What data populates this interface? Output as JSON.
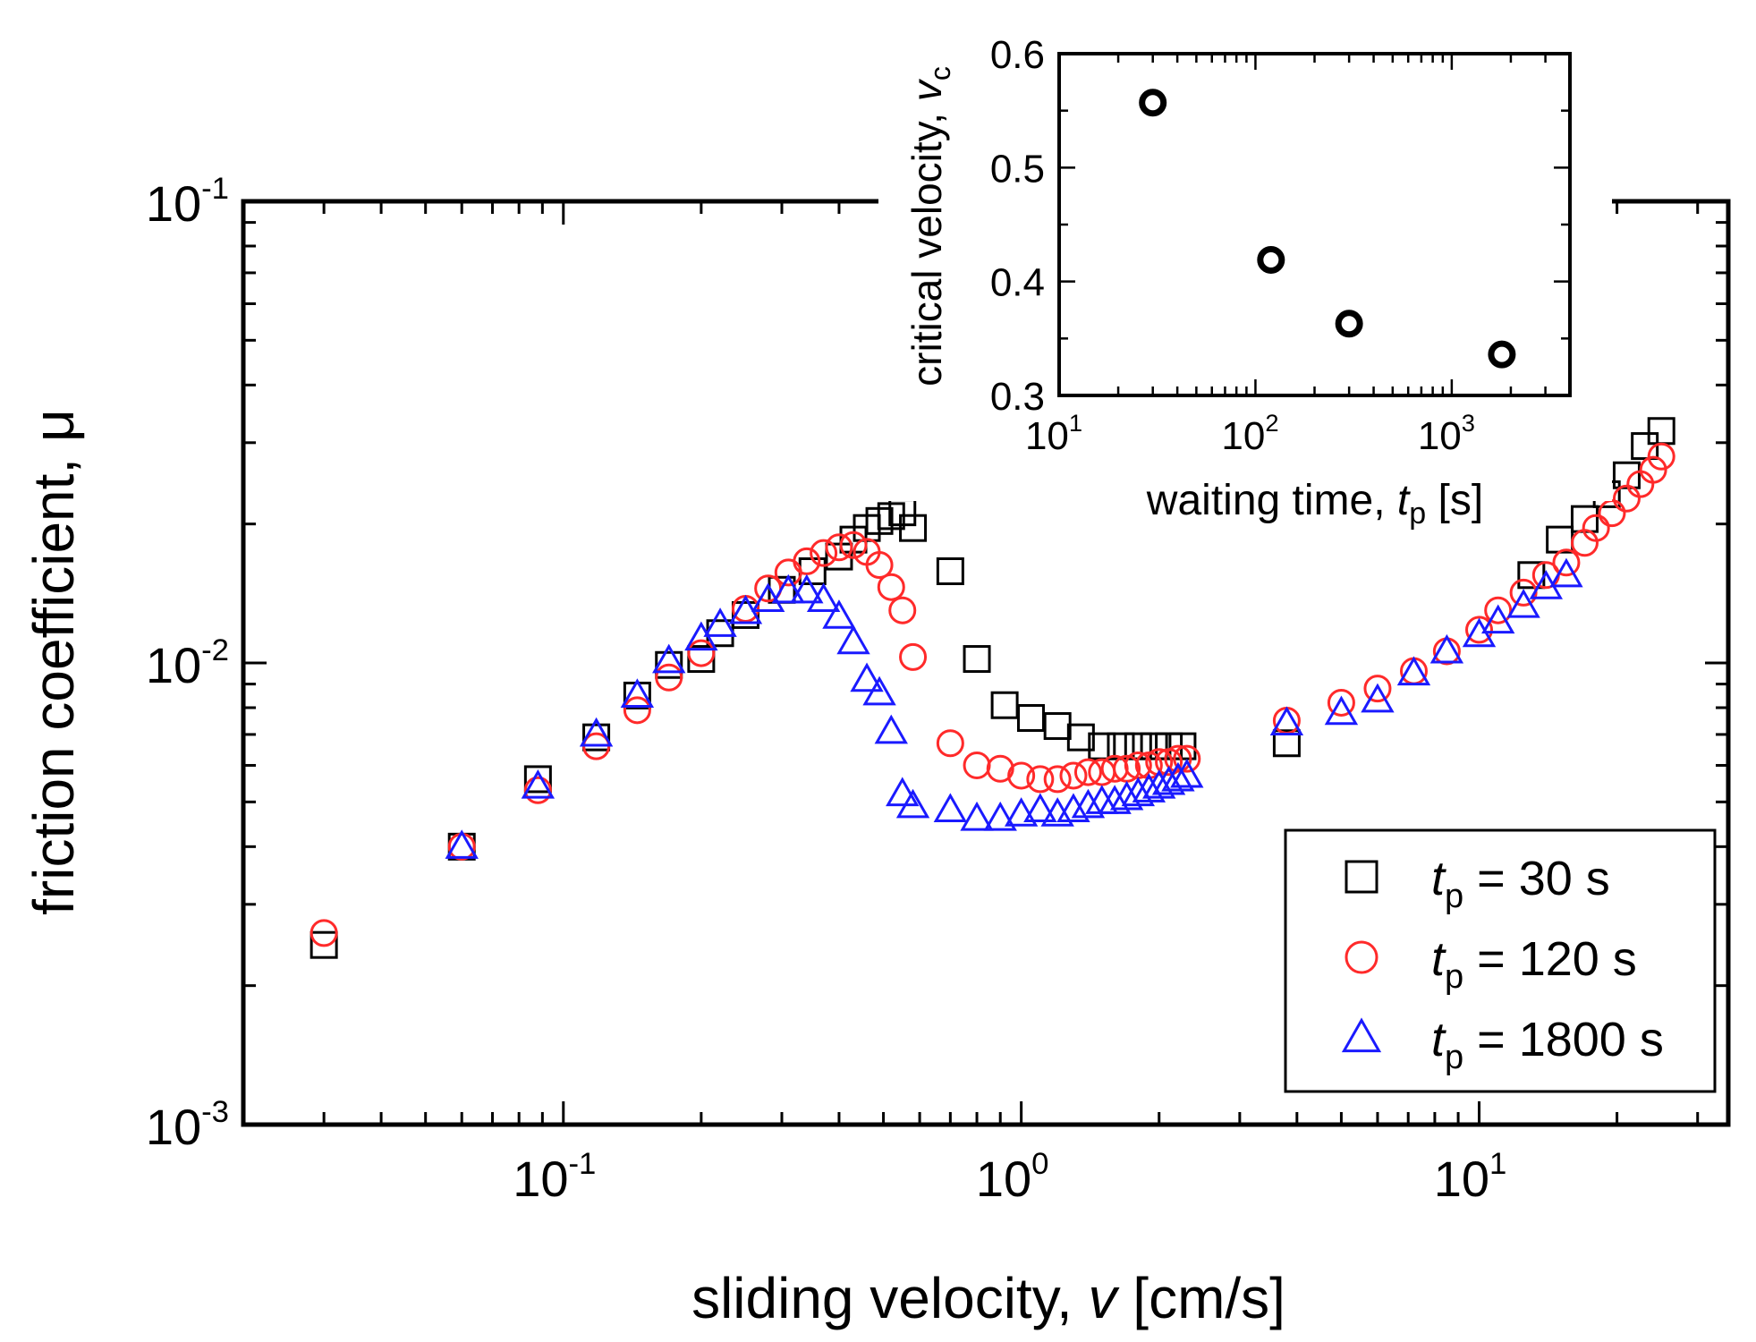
{
  "chart_data": [
    {
      "id": "main",
      "type": "scatter",
      "xscale": "log",
      "yscale": "log",
      "xlim": [
        0.02,
        35
      ],
      "ylim": [
        0.001,
        0.1
      ],
      "xlabel": "sliding velocity, v [cm/s]",
      "xlabel_parts": {
        "pre": "sliding velocity, ",
        "var": "v",
        "post": " [cm/s]"
      },
      "ylabel": "friction coefficient, μ",
      "x_tick_labels": [
        {
          "value": 0.1,
          "base": "10",
          "exp": "-1"
        },
        {
          "value": 1,
          "base": "10",
          "exp": "0"
        },
        {
          "value": 10,
          "base": "10",
          "exp": "1"
        }
      ],
      "y_tick_labels": [
        {
          "value": 0.001,
          "base": "10",
          "exp": "-3"
        },
        {
          "value": 0.01,
          "base": "10",
          "exp": "-2"
        },
        {
          "value": 0.1,
          "base": "10",
          "exp": "-1"
        }
      ],
      "legend_position": "bottom-right",
      "series": [
        {
          "name": "t_p = 30 s",
          "legend": {
            "var": "t",
            "sub": "p",
            "text": " = 30 s"
          },
          "marker": "square",
          "color": "#000000",
          "points": [
            [
              0.03,
              0.00245
            ],
            [
              0.06,
              0.004
            ],
            [
              0.088,
              0.0056
            ],
            [
              0.118,
              0.0069
            ],
            [
              0.145,
              0.0085
            ],
            [
              0.17,
              0.0099
            ],
            [
              0.2,
              0.0102
            ],
            [
              0.22,
              0.0116
            ],
            [
              0.25,
              0.0127
            ],
            [
              0.3,
              0.0144
            ],
            [
              0.35,
              0.0158
            ],
            [
              0.4,
              0.017
            ],
            [
              0.43,
              0.0185
            ],
            [
              0.46,
              0.0196
            ],
            [
              0.49,
              0.0203
            ],
            [
              0.52,
              0.0208
            ],
            [
              0.55,
              0.0212
            ],
            [
              0.58,
              0.0196
            ],
            [
              0.7,
              0.0158
            ],
            [
              0.8,
              0.0102
            ],
            [
              0.92,
              0.0081
            ],
            [
              1.05,
              0.0076
            ],
            [
              1.2,
              0.0073
            ],
            [
              1.35,
              0.0069
            ],
            [
              1.5,
              0.0066
            ],
            [
              1.65,
              0.0066
            ],
            [
              1.8,
              0.0066
            ],
            [
              1.95,
              0.0066
            ],
            [
              2.1,
              0.0066
            ],
            [
              2.25,
              0.0066
            ],
            [
              3.8,
              0.0067
            ],
            [
              13,
              0.0155
            ],
            [
              15,
              0.0185
            ],
            [
              17,
              0.0205
            ],
            [
              19,
              0.0232
            ],
            [
              21,
              0.0255
            ],
            [
              23,
              0.0295
            ],
            [
              25,
              0.0318
            ]
          ]
        },
        {
          "name": "t_p = 120 s",
          "legend": {
            "var": "t",
            "sub": "p",
            "text": " = 120 s"
          },
          "marker": "circle",
          "color": "#ff2a2a",
          "points": [
            [
              0.03,
              0.0026
            ],
            [
              0.06,
              0.004
            ],
            [
              0.088,
              0.0053
            ],
            [
              0.118,
              0.0066
            ],
            [
              0.145,
              0.0079
            ],
            [
              0.17,
              0.0093
            ],
            [
              0.2,
              0.0105
            ],
            [
              0.25,
              0.0131
            ],
            [
              0.28,
              0.0145
            ],
            [
              0.31,
              0.0157
            ],
            [
              0.34,
              0.0166
            ],
            [
              0.37,
              0.0173
            ],
            [
              0.4,
              0.0178
            ],
            [
              0.43,
              0.018
            ],
            [
              0.46,
              0.0174
            ],
            [
              0.49,
              0.0163
            ],
            [
              0.52,
              0.0146
            ],
            [
              0.55,
              0.013
            ],
            [
              0.58,
              0.0103
            ],
            [
              0.7,
              0.0067
            ],
            [
              0.8,
              0.006
            ],
            [
              0.9,
              0.0059
            ],
            [
              1.0,
              0.0057
            ],
            [
              1.1,
              0.0056
            ],
            [
              1.2,
              0.0056
            ],
            [
              1.3,
              0.0057
            ],
            [
              1.4,
              0.0058
            ],
            [
              1.5,
              0.0058
            ],
            [
              1.6,
              0.0059
            ],
            [
              1.7,
              0.0059
            ],
            [
              1.8,
              0.006
            ],
            [
              1.9,
              0.006
            ],
            [
              2.0,
              0.0061
            ],
            [
              2.1,
              0.0061
            ],
            [
              2.2,
              0.0062
            ],
            [
              2.3,
              0.0062
            ],
            [
              3.8,
              0.0075
            ],
            [
              5.0,
              0.0082
            ],
            [
              6.0,
              0.0088
            ],
            [
              7.2,
              0.0096
            ],
            [
              8.5,
              0.0106
            ],
            [
              10,
              0.0118
            ],
            [
              11,
              0.013
            ],
            [
              12.5,
              0.0142
            ],
            [
              14,
              0.0155
            ],
            [
              15.5,
              0.0165
            ],
            [
              17,
              0.0182
            ],
            [
              18,
              0.0196
            ],
            [
              19.5,
              0.0211
            ],
            [
              21,
              0.0227
            ],
            [
              22.5,
              0.0244
            ],
            [
              24,
              0.0262
            ],
            [
              25,
              0.028
            ]
          ]
        },
        {
          "name": "t_p = 1800 s",
          "legend": {
            "var": "t",
            "sub": "p",
            "text": " = 1800 s"
          },
          "marker": "triangle",
          "color": "#1a1aff",
          "points": [
            [
              0.06,
              0.004
            ],
            [
              0.088,
              0.0054
            ],
            [
              0.118,
              0.007
            ],
            [
              0.145,
              0.0085
            ],
            [
              0.17,
              0.0101
            ],
            [
              0.2,
              0.0113
            ],
            [
              0.22,
              0.0121
            ],
            [
              0.25,
              0.0129
            ],
            [
              0.28,
              0.0137
            ],
            [
              0.31,
              0.0143
            ],
            [
              0.34,
              0.0143
            ],
            [
              0.37,
              0.0137
            ],
            [
              0.4,
              0.0126
            ],
            [
              0.43,
              0.0111
            ],
            [
              0.46,
              0.0092
            ],
            [
              0.49,
              0.0086
            ],
            [
              0.52,
              0.0071
            ],
            [
              0.55,
              0.0052
            ],
            [
              0.58,
              0.0049
            ],
            [
              0.7,
              0.0048
            ],
            [
              0.8,
              0.0046
            ],
            [
              0.9,
              0.0046
            ],
            [
              1.0,
              0.0047
            ],
            [
              1.1,
              0.0048
            ],
            [
              1.2,
              0.0047
            ],
            [
              1.3,
              0.0048
            ],
            [
              1.4,
              0.0049
            ],
            [
              1.5,
              0.005
            ],
            [
              1.6,
              0.005
            ],
            [
              1.7,
              0.0051
            ],
            [
              1.8,
              0.0052
            ],
            [
              1.9,
              0.0053
            ],
            [
              2.0,
              0.0054
            ],
            [
              2.1,
              0.0055
            ],
            [
              2.2,
              0.0056
            ],
            [
              2.3,
              0.0057
            ],
            [
              3.8,
              0.0074
            ],
            [
              5.0,
              0.0078
            ],
            [
              6.0,
              0.0083
            ],
            [
              7.2,
              0.0095
            ],
            [
              8.5,
              0.0106
            ],
            [
              10,
              0.0115
            ],
            [
              11,
              0.0123
            ],
            [
              12.5,
              0.0133
            ],
            [
              14,
              0.0146
            ],
            [
              15.5,
              0.0155
            ]
          ]
        }
      ]
    },
    {
      "id": "inset",
      "type": "scatter",
      "xscale": "log",
      "yscale": "linear",
      "xlim": [
        10,
        4000
      ],
      "ylim": [
        0.3,
        0.6
      ],
      "xlabel": "waiting time, t_p [s]",
      "xlabel_parts": {
        "pre": "waiting time, ",
        "var": "t",
        "sub": "p",
        "post": " [s]"
      },
      "ylabel": "critical velocity, v_c",
      "ylabel_parts": {
        "pre": "critical velocity, ",
        "var": "v",
        "sub": "c"
      },
      "x_tick_labels": [
        {
          "value": 10,
          "base": "10",
          "exp": "1"
        },
        {
          "value": 100,
          "base": "10",
          "exp": "2"
        },
        {
          "value": 1000,
          "base": "10",
          "exp": "3"
        }
      ],
      "y_tick_labels": [
        "0.3",
        "0.4",
        "0.5",
        "0.6"
      ],
      "series": [
        {
          "name": "critical velocity",
          "marker": "circle",
          "color": "#000000",
          "points": [
            [
              30,
              0.557
            ],
            [
              120,
              0.419
            ],
            [
              300,
              0.363
            ],
            [
              1800,
              0.336
            ]
          ]
        }
      ]
    }
  ]
}
